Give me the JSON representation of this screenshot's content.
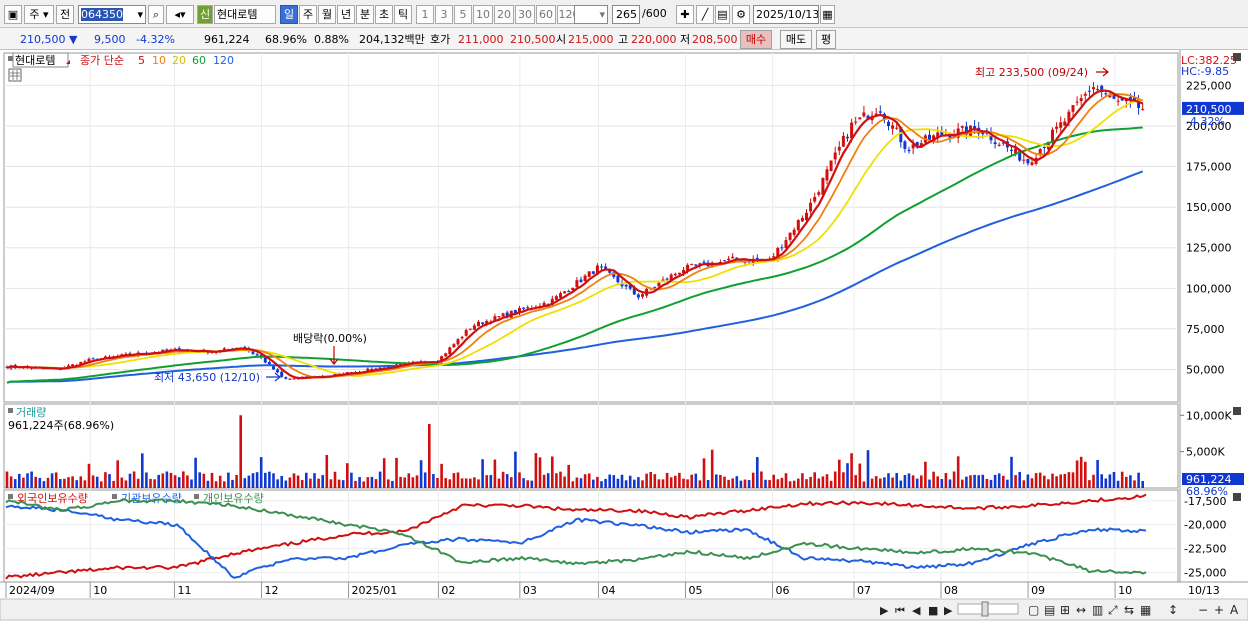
{
  "toolbar": {
    "mode": "주",
    "prev": "전",
    "code": "064350",
    "market_badge": "신",
    "stock_name": "현대로템",
    "periods": [
      "일",
      "주",
      "월",
      "년",
      "분",
      "초",
      "틱"
    ],
    "active_period": "일",
    "minutes": [
      "1",
      "3",
      "5",
      "10",
      "20",
      "30",
      "60",
      "120"
    ],
    "count": "265",
    "count_total": "/600",
    "date": "2025/10/13"
  },
  "quote": {
    "price": "210,500",
    "change": "9,500",
    "change_pct": "-4.32%",
    "volume": "961,224",
    "vol_ratio": "68.96%",
    "turnover_pct": "0.88%",
    "amount": "204,132백만",
    "bid_label": "호가",
    "ask": "211,000",
    "bid": "210,500",
    "open_label": "시",
    "open": "215,000",
    "high_label": "고",
    "high": "220,000",
    "low_label": "저",
    "low": "208,500",
    "buy_label": "매수",
    "sell_label": "매도",
    "avg_label": "평"
  },
  "chart_data": [
    {
      "type": "candlestick",
      "title": "현대로템",
      "legend": {
        "label": "종가 단순",
        "periods": [
          "5",
          "10",
          "20",
          "60",
          "120"
        ],
        "colors": [
          "#d01010",
          "#f08010",
          "#f0e000",
          "#10a030",
          "#2060e0"
        ]
      },
      "x_ticks": [
        "2024/09",
        "10",
        "11",
        "12",
        "2025/01",
        "02",
        "03",
        "04",
        "05",
        "06",
        "07",
        "08",
        "09",
        "10",
        "10/13"
      ],
      "y_ticks": [
        "225,000",
        "200,000",
        "175,000",
        "150,000",
        "125,000",
        "100,000",
        "75,000",
        "50,000"
      ],
      "y_range": [
        30000,
        240000
      ],
      "lc_label": "LC:382.25",
      "hc_label": "HC:-9.85",
      "last_price_label": "210,500",
      "last_change_label": "-4.32%",
      "max_annotation": "최고 233,500 (09/24)",
      "min_annotation": "최저 43,650 (12/10)",
      "dividend_annotation": "배당락(0.00%)",
      "close_path": [
        [
          "2024/09/02",
          52000
        ],
        [
          "2024/09/20",
          50000
        ],
        [
          "2024/10/02",
          56000
        ],
        [
          "2024/10/20",
          60000
        ],
        [
          "2024/11/01",
          62000
        ],
        [
          "2024/11/15",
          61000
        ],
        [
          "2024/11/25",
          64000
        ],
        [
          "2024/12/02",
          57000
        ],
        [
          "2024/12/10",
          44000
        ],
        [
          "2024/12/25",
          46000
        ],
        [
          "2025/01/10",
          50000
        ],
        [
          "2025/01/25",
          54000
        ],
        [
          "2025/02/03",
          56000
        ],
        [
          "2025/02/15",
          77000
        ],
        [
          "2025/03/01",
          85000
        ],
        [
          "2025/03/15",
          92000
        ],
        [
          "2025/04/01",
          113000
        ],
        [
          "2025/04/15",
          95000
        ],
        [
          "2025/05/01",
          112000
        ],
        [
          "2025/05/20",
          118000
        ],
        [
          "2025/06/01",
          117000
        ],
        [
          "2025/06/15",
          150000
        ],
        [
          "2025/06/30",
          200000
        ],
        [
          "2025/07/10",
          212000
        ],
        [
          "2025/07/20",
          186000
        ],
        [
          "2025/08/01",
          195000
        ],
        [
          "2025/08/15",
          198000
        ],
        [
          "2025/08/25",
          186000
        ],
        [
          "2025/09/01",
          178000
        ],
        [
          "2025/09/15",
          205000
        ],
        [
          "2025/09/24",
          225000
        ],
        [
          "2025/10/02",
          215000
        ],
        [
          "2025/10/13",
          210500
        ]
      ]
    },
    {
      "type": "bar",
      "title": "거래량",
      "info": "961,224주(68.96%)",
      "y_ticks": [
        "10,000K",
        "5,000K"
      ],
      "last_label": "961,224",
      "last_pct_label": "68.96%"
    },
    {
      "type": "line",
      "series": [
        {
          "name": "외국인보유수량",
          "color": "#d01010",
          "values": [
            -25500,
            -25000,
            -24500,
            -24500,
            -23000,
            -22000,
            -21000,
            -20700,
            -18000,
            -18000,
            -18500,
            -18500,
            -19200,
            -18500,
            -17800,
            -17700,
            -18000,
            -18300,
            -18000,
            -17500,
            -17000
          ]
        },
        {
          "name": "기관보유수량",
          "color": "#2060e0",
          "values": [
            -18000,
            -18500,
            -19500,
            -20000,
            -25500,
            -23500,
            -23500,
            -22000,
            -21500,
            -22000,
            -19500,
            -20000,
            -20800,
            -20500,
            -23500,
            -23800,
            -24500,
            -24000,
            -22000,
            -20500,
            -20700
          ]
        },
        {
          "name": "개인보유수량",
          "color": "#3a9050",
          "values": [
            -17500,
            -18500,
            -17500,
            -17500,
            -18000,
            -19000,
            -20000,
            -21000,
            -24000,
            -23500,
            -24000,
            -23800,
            -22800,
            -23500,
            -22000,
            -22500,
            -23000,
            -22500,
            -23000,
            -24800,
            -25000
          ]
        }
      ],
      "y_ticks": [
        "-17,500",
        "-20,000",
        "-22,500",
        "-25,000"
      ]
    }
  ]
}
